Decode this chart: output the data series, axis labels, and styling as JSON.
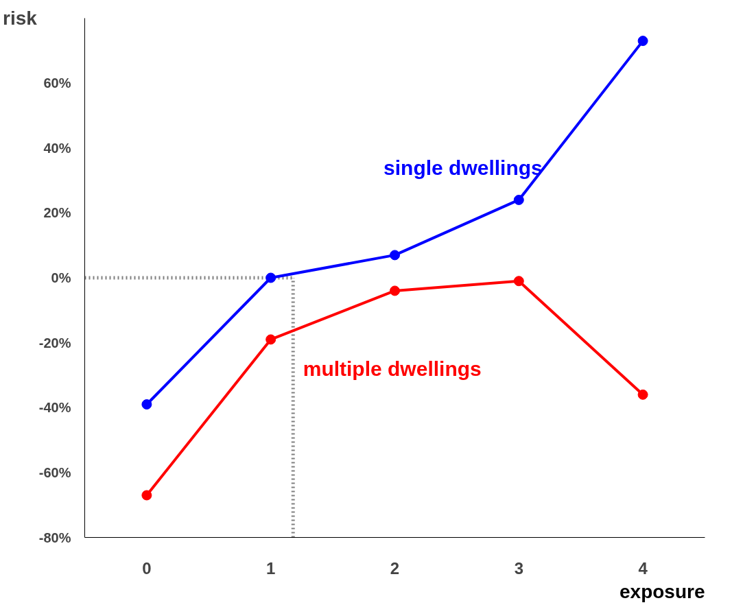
{
  "chart_data": {
    "type": "line",
    "xlabel": "exposure",
    "ylabel": "risk",
    "x": [
      0,
      1,
      2,
      3,
      4
    ],
    "series": [
      {
        "name": "single dwellings",
        "color": "#0000ff",
        "values": [
          -39,
          0,
          7,
          24,
          73
        ]
      },
      {
        "name": "multiple dwellings",
        "color": "#ff0000",
        "values": [
          -67,
          -19,
          -4,
          -1,
          -36
        ]
      }
    ],
    "xlim": [
      -0.5,
      4.5
    ],
    "xticks": [
      0,
      1,
      2,
      3,
      4
    ],
    "ylim": [
      -80,
      80
    ],
    "yticks": [
      {
        "value": -80,
        "label": "-80%"
      },
      {
        "value": -60,
        "label": "-60%"
      },
      {
        "value": -40,
        "label": "-40%"
      },
      {
        "value": -20,
        "label": "-20%"
      },
      {
        "value": 0,
        "label": "0%"
      },
      {
        "value": 20,
        "label": "20%"
      },
      {
        "value": 40,
        "label": "40%"
      },
      {
        "value": 60,
        "label": "60%"
      }
    ],
    "ref_lines": [
      {
        "axis": "y",
        "value": 0,
        "color": "#808080",
        "line_style": "dotted"
      },
      {
        "axis": "x",
        "value": 1.18,
        "color": "#808080",
        "line_style": "dotted"
      }
    ],
    "grid": false,
    "marker": "circle",
    "line_style": "solid"
  }
}
